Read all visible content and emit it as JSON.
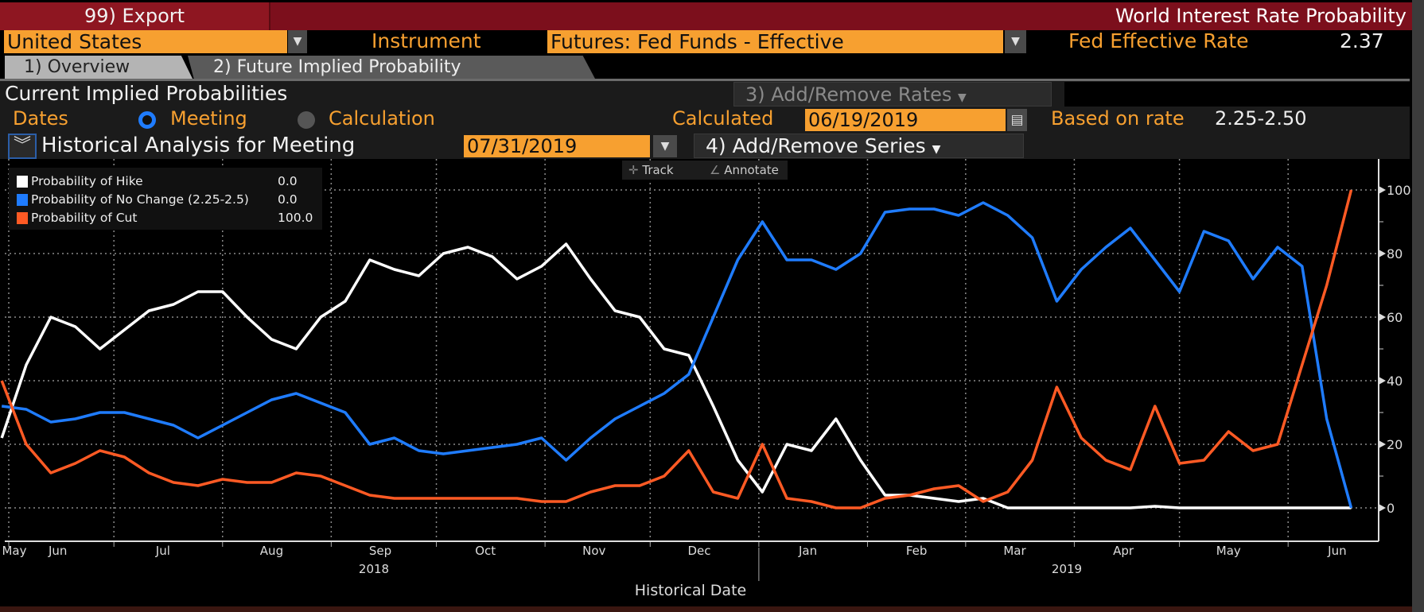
{
  "header": {
    "export_label": "99) Export",
    "app_title": "World Interest Rate Probability"
  },
  "controls": {
    "country": "United States",
    "instrument_label": "Instrument",
    "instrument": "Futures: Fed Funds - Effective",
    "rate_label": "Fed Effective Rate",
    "rate_value": "2.37",
    "dropdown_icon": "triangle-down"
  },
  "tabs": [
    {
      "label": "1) Overview",
      "active": true
    },
    {
      "label": "2) Future Implied Probability",
      "active": false
    }
  ],
  "panel": {
    "section_title": "Current Implied Probabilities",
    "add_remove_rates": "3) Add/Remove Rates",
    "dates_label": "Dates",
    "radio_meeting": "Meeting",
    "radio_calculation": "Calculation",
    "selected_radio": "Meeting",
    "calculated_label": "Calculated",
    "calculated_date": "06/19/2019",
    "based_on_label": "Based on rate",
    "based_on_value": "2.25-2.50",
    "historical_label": "Historical Analysis for Meeting",
    "meeting_date": "07/31/2019",
    "add_remove_series": "4) Add/Remove Series"
  },
  "chart_tools": {
    "track": "Track",
    "annotate": "Annotate"
  },
  "colors": {
    "hike": "#ffffff",
    "no_change": "#1f7cff",
    "cut": "#ff5a24",
    "accent": "#f7a030",
    "header": "#7c0f1c"
  },
  "chart_data": {
    "type": "line",
    "xlabel": "Historical Date",
    "ylabel": "",
    "ylim": [
      0,
      100
    ],
    "yticks": [
      "0",
      "20",
      "40",
      "60",
      "80",
      "100"
    ],
    "x_month_labels": [
      "May",
      "Jun",
      "Jul",
      "Aug",
      "Sep",
      "Oct",
      "Nov",
      "Dec",
      "Jan",
      "Feb",
      "Mar",
      "Apr",
      "May",
      "Jun"
    ],
    "x_year_labels": [
      "2018",
      "2019"
    ],
    "grid": true,
    "legend_placement": "top-left",
    "start_date": "2018-05-30",
    "interval_days": 7,
    "series": [
      {
        "name": "Probability of Hike",
        "last": "0.0",
        "color": "#ffffff",
        "values": [
          22,
          45,
          60,
          57,
          50,
          56,
          62,
          64,
          68,
          68,
          60,
          53,
          50,
          60,
          65,
          78,
          75,
          73,
          80,
          82,
          79,
          72,
          76,
          83,
          72,
          62,
          60,
          50,
          48,
          32,
          15,
          5,
          20,
          18,
          28,
          15,
          4,
          4,
          3,
          2,
          3,
          0,
          0,
          0,
          0,
          0,
          0,
          0.5,
          0,
          0,
          0,
          0,
          0,
          0,
          0,
          0
        ]
      },
      {
        "name": "Probability of No Change (2.25-2.5)",
        "last": "0.0",
        "color": "#1f7cff",
        "values": [
          32,
          31,
          27,
          28,
          30,
          30,
          28,
          26,
          22,
          26,
          30,
          34,
          36,
          33,
          30,
          20,
          22,
          18,
          17,
          18,
          19,
          20,
          22,
          15,
          22,
          28,
          32,
          36,
          42,
          60,
          78,
          90,
          78,
          78,
          75,
          80,
          93,
          94,
          94,
          92,
          96,
          92,
          85,
          65,
          75,
          82,
          88,
          78,
          68,
          87,
          84,
          72,
          82,
          76,
          28,
          0
        ]
      },
      {
        "name": "Probability of Cut",
        "last": "100.0",
        "color": "#ff5a24",
        "values": [
          40,
          20,
          11,
          14,
          18,
          16,
          11,
          8,
          7,
          9,
          8,
          8,
          11,
          10,
          7,
          4,
          3,
          3,
          3,
          3,
          3,
          3,
          2,
          2,
          5,
          7,
          7,
          10,
          18,
          5,
          3,
          20,
          3,
          2,
          0,
          0,
          3,
          4,
          6,
          7,
          2,
          5,
          15,
          38,
          22,
          15,
          12,
          32,
          14,
          15,
          24,
          18,
          20,
          45,
          70,
          100
        ]
      }
    ]
  }
}
